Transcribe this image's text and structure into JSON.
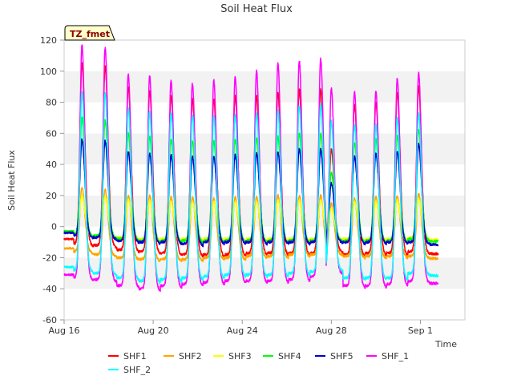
{
  "chart_data": {
    "type": "line",
    "title": "Soil Heat Flux",
    "xlabel": "Time",
    "ylabel": "Soil Heat Flux",
    "site_label": "TZ_fmet",
    "xlim": [
      0,
      22.5
    ],
    "ylim": [
      -60,
      120
    ],
    "yticks": [
      -60,
      -40,
      -20,
      0,
      20,
      40,
      60,
      80,
      100,
      120
    ],
    "xticks": [
      {
        "day": 0,
        "label": "Aug 16"
      },
      {
        "day": 5,
        "label": "Aug 20"
      },
      {
        "day": 10,
        "label": "Aug 24"
      },
      {
        "day": 15,
        "label": "Aug 28"
      },
      {
        "day": 20,
        "label": "Sep 1"
      }
    ],
    "grid_bands": true,
    "legend_position": "bottom",
    "peak_days": [
      1.0,
      2.3,
      3.6,
      4.8,
      6.0,
      7.2,
      8.4,
      9.6,
      10.8,
      12.0,
      13.2,
      14.4,
      15.0,
      16.3,
      17.5,
      18.7,
      19.9
    ],
    "series": [
      {
        "name": "SHF1",
        "color": "#ff0000",
        "peaks": [
          105,
          103,
          90,
          87,
          84,
          82,
          82,
          84,
          84,
          86,
          88,
          88,
          50,
          78,
          80,
          86,
          90
        ],
        "baseline": [
          -11,
          -12,
          -15,
          -16,
          -17,
          -18,
          -18,
          -18,
          -17,
          -17,
          -17,
          -17,
          -15,
          -18,
          -17,
          -17,
          -16
        ]
      },
      {
        "name": "SHF2",
        "color": "#ffa500",
        "peaks": [
          25,
          24,
          20,
          20,
          19,
          19,
          18,
          19,
          19,
          20,
          20,
          20,
          15,
          18,
          19,
          20,
          21
        ],
        "baseline": [
          -16,
          -18,
          -20,
          -21,
          -21,
          -21,
          -20,
          -20,
          -19,
          -19,
          -18,
          -18,
          -17,
          -19,
          -19,
          -19,
          -19
        ]
      },
      {
        "name": "SHF3",
        "color": "#ffff00",
        "peaks": [
          20,
          19,
          17,
          17,
          16,
          16,
          16,
          16,
          16,
          17,
          17,
          17,
          12,
          16,
          16,
          17,
          18
        ],
        "baseline": [
          -5,
          -6,
          -7,
          -8,
          -8,
          -8,
          -8,
          -8,
          -8,
          -8,
          -8,
          -8,
          -7,
          -8,
          -8,
          -8,
          -7
        ]
      },
      {
        "name": "SHF4",
        "color": "#00ff00",
        "peaks": [
          70,
          68,
          60,
          58,
          56,
          55,
          55,
          56,
          57,
          58,
          60,
          60,
          35,
          54,
          56,
          58,
          62
        ],
        "baseline": [
          -5,
          -6,
          -8,
          -9,
          -9,
          -9,
          -9,
          -9,
          -9,
          -9,
          -9,
          -9,
          -8,
          -9,
          -9,
          -9,
          -8
        ]
      },
      {
        "name": "SHF5",
        "color": "#0000cd",
        "peaks": [
          56,
          55,
          48,
          47,
          46,
          45,
          45,
          46,
          47,
          48,
          50,
          50,
          28,
          45,
          47,
          48,
          53
        ],
        "baseline": [
          -6,
          -7,
          -9,
          -10,
          -10,
          -11,
          -10,
          -10,
          -10,
          -10,
          -10,
          -10,
          -9,
          -10,
          -10,
          -10,
          -10
        ]
      },
      {
        "name": "SHF_1",
        "color": "#ff00ff",
        "peaks": [
          117,
          115,
          98,
          97,
          94,
          92,
          94,
          96,
          100,
          105,
          107,
          108,
          89,
          87,
          87,
          95,
          99
        ],
        "baseline": [
          -33,
          -34,
          -38,
          -40,
          -38,
          -37,
          -36,
          -35,
          -35,
          -35,
          -34,
          -32,
          -29,
          -38,
          -38,
          -37,
          -35
        ]
      },
      {
        "name": "SHF_2",
        "color": "#00ffff",
        "peaks": [
          87,
          86,
          76,
          74,
          73,
          72,
          71,
          72,
          73,
          75,
          78,
          79,
          68,
          66,
          66,
          70,
          73
        ],
        "baseline": [
          -28,
          -30,
          -33,
          -35,
          -34,
          -33,
          -32,
          -31,
          -31,
          -31,
          -30,
          -29,
          -27,
          -33,
          -33,
          -33,
          -30
        ]
      }
    ]
  }
}
